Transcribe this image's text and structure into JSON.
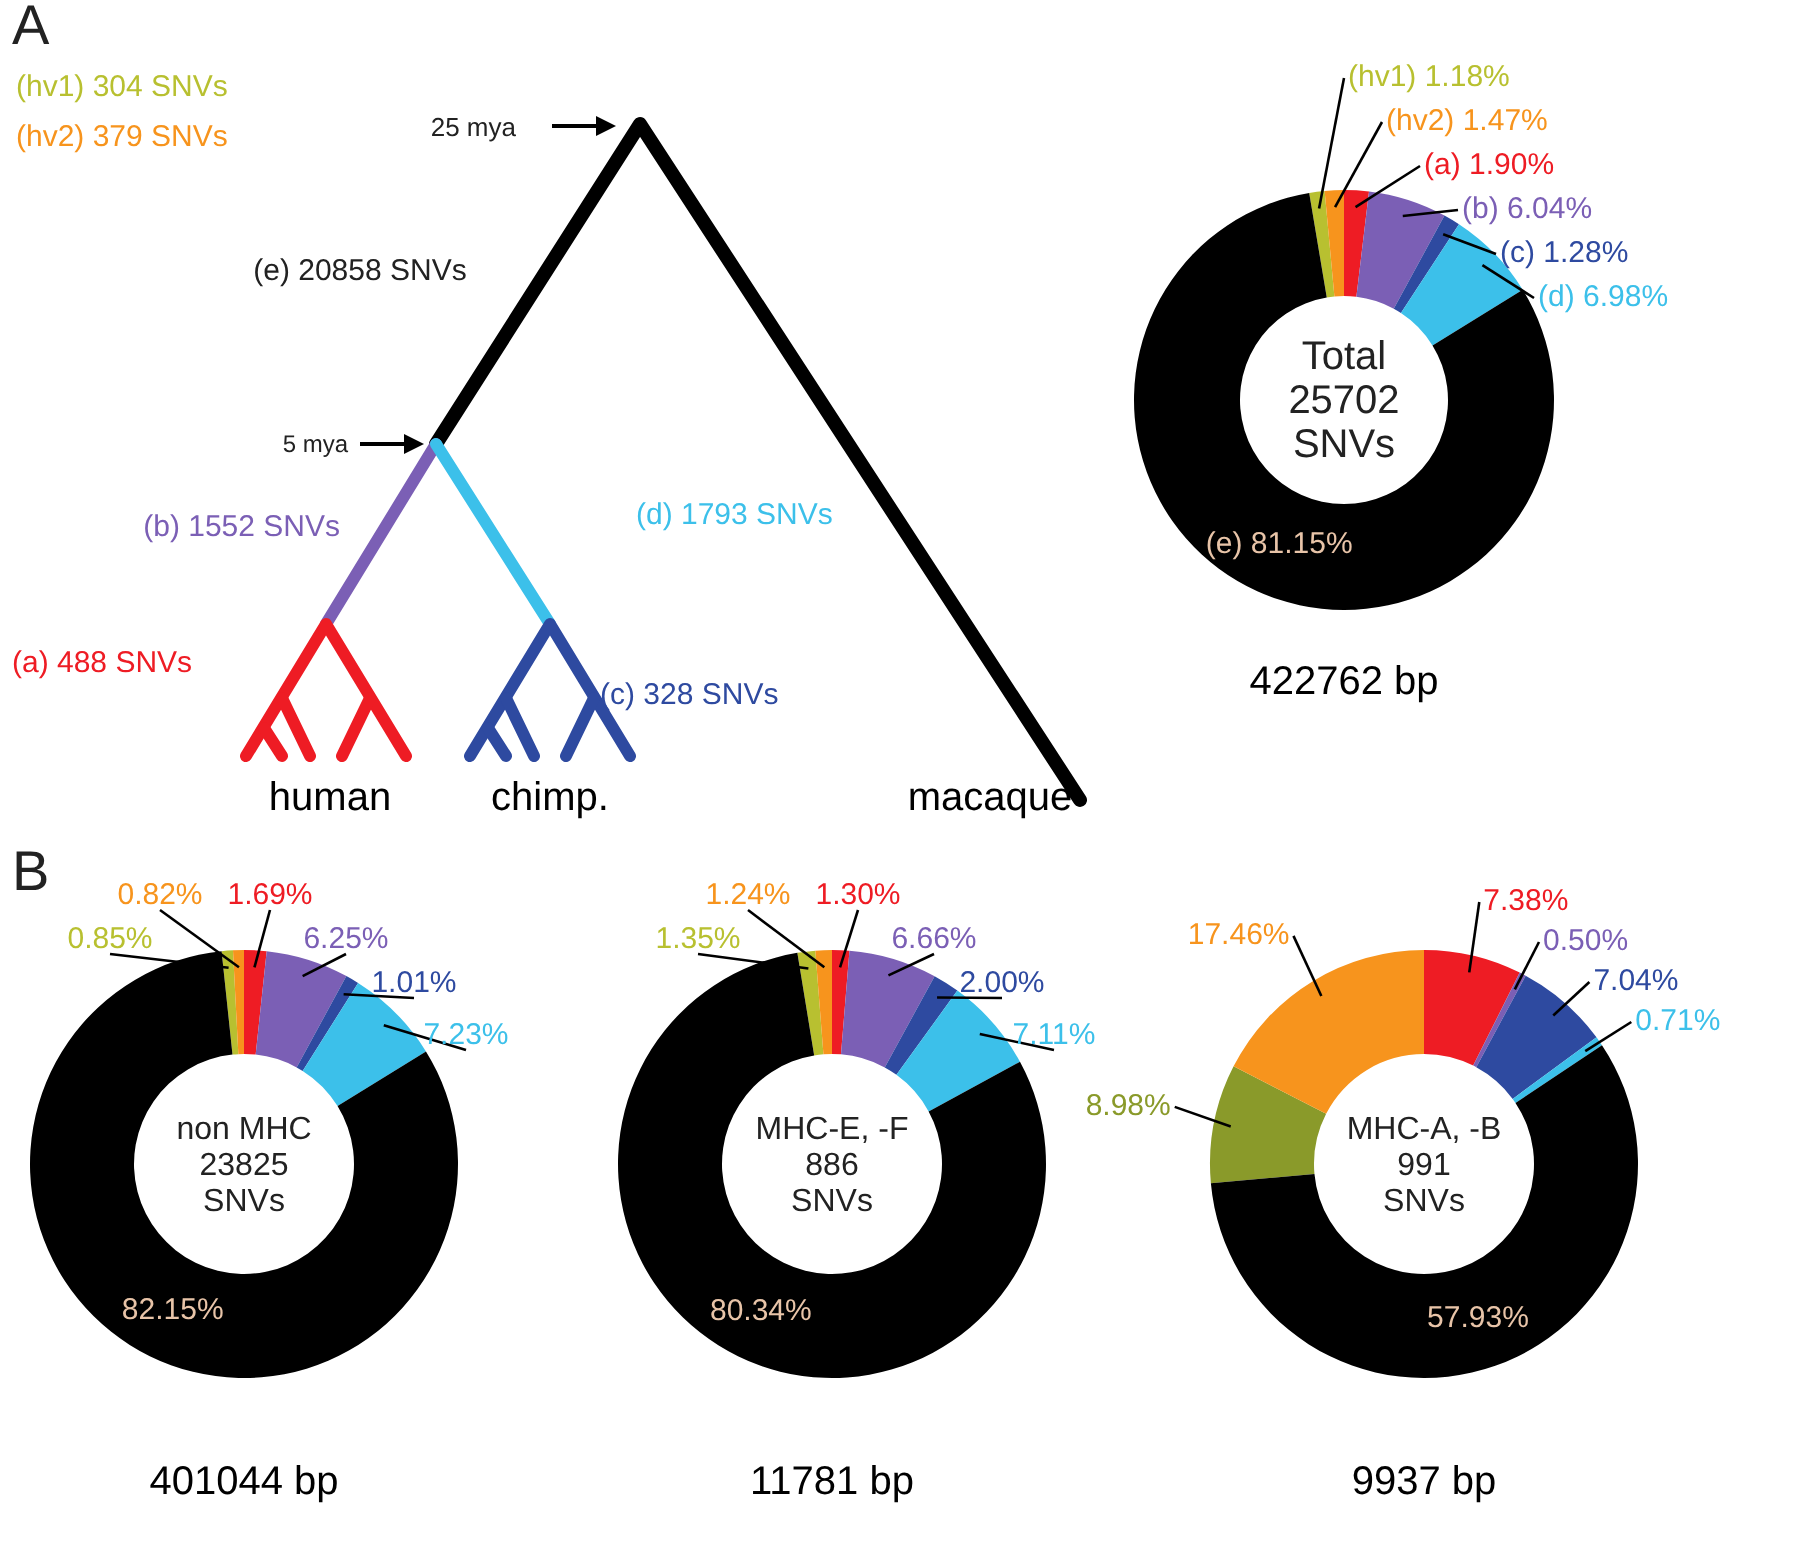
{
  "chart_data": [
    {
      "type": "other",
      "annotations": [
        "A",
        "(hv1) 304 SNVs",
        "(hv2) 379 SNVs",
        "25 mya",
        "(e) 20858 SNVs",
        "5 mya",
        "(b) 1552 SNVs",
        "(d) 1793 SNVs",
        "(a) 488 SNVs",
        "(c) 328 SNVs",
        "human",
        "chimp.",
        "macaque"
      ],
      "colors": [
        "#222222",
        "#b8c030",
        "#f7941d",
        "#222222",
        "#222222",
        "#222222",
        "#7b5fb5",
        "#3cc0ea",
        "#ee1c24",
        "#2e4aa0",
        "#000000",
        "#000000",
        "#000000"
      ]
    },
    {
      "type": "donut",
      "title": "Total\n25702\nSNVs",
      "xlabel": "422762 bp",
      "categories": [
        "(hv1)",
        "(hv2)",
        "(a)",
        "(b)",
        "(c)",
        "(d)",
        "(e)"
      ],
      "values": [
        1.18,
        1.47,
        1.9,
        6.04,
        1.28,
        6.98,
        81.15
      ],
      "value_labels": [
        "1.18%",
        "1.47%",
        "1.90%",
        "6.04%",
        "1.28%",
        "6.98%",
        "81.15%"
      ],
      "colors": [
        "#b8c030",
        "#f7941d",
        "#ee1c24",
        "#7b5fb5",
        "#2e4aa0",
        "#3cc0ea",
        "#000000"
      ]
    },
    {
      "type": "donut",
      "title": "non MHC\n23825\nSNVs",
      "xlabel": "401044 bp",
      "annotations": [
        "B"
      ],
      "categories": [
        null,
        null,
        null,
        null,
        null,
        null,
        null
      ],
      "values": [
        0.85,
        0.82,
        1.69,
        6.25,
        1.01,
        7.23,
        82.15
      ],
      "value_labels": [
        "0.85%",
        "0.82%",
        "1.69%",
        "6.25%",
        "1.01%",
        "7.23%",
        "82.15%"
      ],
      "colors": [
        "#b8c030",
        "#f7941d",
        "#ee1c24",
        "#7b5fb5",
        "#2e4aa0",
        "#3cc0ea",
        "#000000"
      ]
    },
    {
      "type": "donut",
      "title": "MHC-E, -F\n886\nSNVs",
      "xlabel": "11781 bp",
      "categories": [
        null,
        null,
        null,
        null,
        null,
        null,
        null
      ],
      "values": [
        1.35,
        1.24,
        1.3,
        6.66,
        2.0,
        7.11,
        80.34
      ],
      "value_labels": [
        "1.35%",
        "1.24%",
        "1.30%",
        "6.66%",
        "2.00%",
        "7.11%",
        "80.34%"
      ],
      "colors": [
        "#b8c030",
        "#f7941d",
        "#ee1c24",
        "#7b5fb5",
        "#2e4aa0",
        "#3cc0ea",
        "#000000"
      ]
    },
    {
      "type": "donut",
      "title": "MHC-A, -B\n991\nSNVs",
      "xlabel": "9937 bp",
      "categories": [
        null,
        null,
        null,
        null,
        null,
        null,
        null
      ],
      "values": [
        8.98,
        17.46,
        7.38,
        0.5,
        7.04,
        0.71,
        57.93
      ],
      "value_labels": [
        "8.98%",
        "17.46%",
        "7.38%",
        "0.50%",
        "7.04%",
        "0.71%",
        "57.93%"
      ],
      "colors": [
        "#8a9a2a",
        "#f7941d",
        "#ee1c24",
        "#7b5fb5",
        "#2e4aa0",
        "#3cc0ea",
        "#000000"
      ]
    }
  ]
}
